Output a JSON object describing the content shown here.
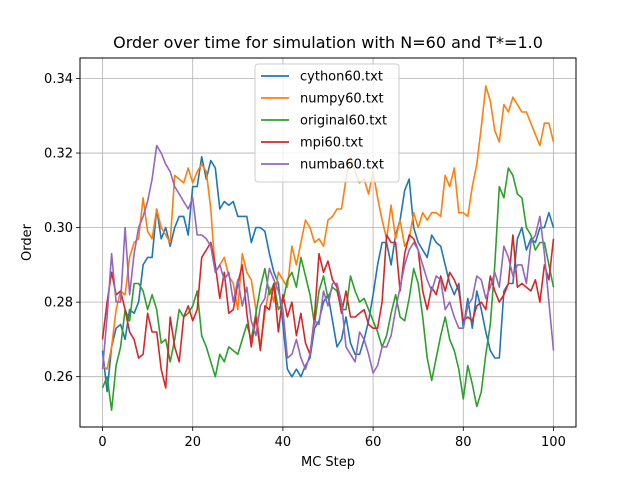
{
  "chart_data": {
    "type": "line",
    "title": "Order over time for simulation with N=60 and T*=1.0",
    "xlabel": "MC Step",
    "ylabel": "Order",
    "xlim": [
      -5,
      105
    ],
    "ylim": [
      0.2465,
      0.3455
    ],
    "xticks": [
      0,
      20,
      40,
      60,
      80,
      100
    ],
    "yticks": [
      0.26,
      0.28,
      0.3,
      0.32,
      0.34
    ],
    "ytick_labels": [
      "0.26",
      "0.28",
      "0.30",
      "0.32",
      "0.34"
    ],
    "grid": true,
    "legend_position": "upper center",
    "x": [
      0,
      1,
      2,
      3,
      4,
      5,
      6,
      7,
      8,
      9,
      10,
      11,
      12,
      13,
      14,
      15,
      16,
      17,
      18,
      19,
      20,
      21,
      22,
      23,
      24,
      25,
      26,
      27,
      28,
      29,
      30,
      31,
      32,
      33,
      34,
      35,
      36,
      37,
      38,
      39,
      40,
      41,
      42,
      43,
      44,
      45,
      46,
      47,
      48,
      49,
      50,
      51,
      52,
      53,
      54,
      55,
      56,
      57,
      58,
      59,
      60,
      61,
      62,
      63,
      64,
      65,
      66,
      67,
      68,
      69,
      70,
      71,
      72,
      73,
      74,
      75,
      76,
      77,
      78,
      79,
      80,
      81,
      82,
      83,
      84,
      85,
      86,
      87,
      88,
      89,
      90,
      91,
      92,
      93,
      94,
      95,
      96,
      97,
      98,
      99,
      100
    ],
    "series": [
      {
        "name": "cython60.txt",
        "color": "#1f77b4",
        "values": [
          0.267,
          0.256,
          0.268,
          0.273,
          0.274,
          0.27,
          0.278,
          0.277,
          0.28,
          0.29,
          0.292,
          0.292,
          0.305,
          0.297,
          0.3,
          0.295,
          0.3,
          0.303,
          0.303,
          0.298,
          0.311,
          0.311,
          0.319,
          0.313,
          0.318,
          0.316,
          0.305,
          0.307,
          0.306,
          0.307,
          0.303,
          0.303,
          0.303,
          0.296,
          0.3,
          0.3,
          0.299,
          0.293,
          0.288,
          0.285,
          0.274,
          0.262,
          0.26,
          0.262,
          0.26,
          0.263,
          0.265,
          0.273,
          0.275,
          0.28,
          0.282,
          0.275,
          0.268,
          0.27,
          0.276,
          0.269,
          0.266,
          0.266,
          0.27,
          0.275,
          0.282,
          0.29,
          0.296,
          0.296,
          0.29,
          0.298,
          0.302,
          0.31,
          0.313,
          0.3,
          0.296,
          0.294,
          0.292,
          0.298,
          0.296,
          0.295,
          0.29,
          0.285,
          0.282,
          0.285,
          0.273,
          0.281,
          0.273,
          0.283,
          0.278,
          0.272,
          0.267,
          0.265,
          0.265,
          0.283,
          0.285,
          0.285,
          0.297,
          0.3,
          0.294,
          0.297,
          0.296,
          0.3,
          0.3,
          0.304,
          0.3
        ]
      },
      {
        "name": "numpy60.txt",
        "color": "#ff7f0e",
        "values": [
          0.263,
          0.262,
          0.268,
          0.278,
          0.283,
          0.282,
          0.292,
          0.296,
          0.297,
          0.308,
          0.299,
          0.297,
          0.305,
          0.3,
          0.298,
          0.296,
          0.314,
          0.313,
          0.312,
          0.316,
          0.312,
          0.315,
          0.317,
          0.315,
          0.305,
          0.288,
          0.29,
          0.292,
          0.287,
          0.285,
          0.278,
          0.293,
          0.288,
          0.286,
          0.278,
          0.268,
          0.277,
          0.284,
          0.28,
          0.288,
          0.286,
          0.284,
          0.295,
          0.29,
          0.296,
          0.302,
          0.3,
          0.296,
          0.297,
          0.295,
          0.302,
          0.303,
          0.305,
          0.305,
          0.313,
          0.319,
          0.315,
          0.312,
          0.313,
          0.309,
          0.315,
          0.308,
          0.302,
          0.297,
          0.306,
          0.297,
          0.302,
          0.295,
          0.297,
          0.304,
          0.3,
          0.304,
          0.302,
          0.304,
          0.304,
          0.303,
          0.314,
          0.311,
          0.316,
          0.304,
          0.304,
          0.303,
          0.311,
          0.317,
          0.327,
          0.338,
          0.334,
          0.326,
          0.323,
          0.333,
          0.331,
          0.335,
          0.333,
          0.331,
          0.331,
          0.328,
          0.325,
          0.322,
          0.328,
          0.328,
          0.323
        ]
      },
      {
        "name": "original60.txt",
        "color": "#2ca02c",
        "values": [
          0.257,
          0.26,
          0.251,
          0.263,
          0.268,
          0.278,
          0.275,
          0.285,
          0.285,
          0.283,
          0.278,
          0.282,
          0.278,
          0.269,
          0.27,
          0.264,
          0.27,
          0.278,
          0.276,
          0.277,
          0.279,
          0.283,
          0.271,
          0.268,
          0.264,
          0.26,
          0.266,
          0.264,
          0.268,
          0.267,
          0.266,
          0.27,
          0.274,
          0.27,
          0.277,
          0.284,
          0.289,
          0.282,
          0.285,
          0.278,
          0.28,
          0.286,
          0.288,
          0.284,
          0.292,
          0.287,
          0.282,
          0.274,
          0.283,
          0.287,
          0.281,
          0.284,
          0.283,
          0.278,
          0.278,
          0.287,
          0.283,
          0.28,
          0.281,
          0.278,
          0.275,
          0.272,
          0.268,
          0.271,
          0.277,
          0.282,
          0.276,
          0.275,
          0.281,
          0.289,
          0.285,
          0.276,
          0.265,
          0.259,
          0.265,
          0.271,
          0.276,
          0.27,
          0.267,
          0.262,
          0.254,
          0.263,
          0.258,
          0.252,
          0.256,
          0.266,
          0.274,
          0.29,
          0.311,
          0.308,
          0.316,
          0.314,
          0.309,
          0.308,
          0.3,
          0.298,
          0.294,
          0.296,
          0.296,
          0.29,
          0.284
        ]
      },
      {
        "name": "mpi60.txt",
        "color": "#d62728",
        "values": [
          0.27,
          0.28,
          0.288,
          0.282,
          0.283,
          0.278,
          0.272,
          0.27,
          0.265,
          0.266,
          0.277,
          0.272,
          0.272,
          0.262,
          0.257,
          0.276,
          0.268,
          0.264,
          0.276,
          0.279,
          0.275,
          0.278,
          0.292,
          0.294,
          0.296,
          0.29,
          0.281,
          0.288,
          0.277,
          0.278,
          0.285,
          0.29,
          0.277,
          0.268,
          0.276,
          0.267,
          0.279,
          0.278,
          0.285,
          0.272,
          0.282,
          0.276,
          0.28,
          0.271,
          0.277,
          0.269,
          0.266,
          0.276,
          0.293,
          0.288,
          0.291,
          0.286,
          0.284,
          0.277,
          0.283,
          0.276,
          0.276,
          0.277,
          0.278,
          0.274,
          0.273,
          0.273,
          0.28,
          0.298,
          0.296,
          0.296,
          0.283,
          0.293,
          0.298,
          0.297,
          0.294,
          0.283,
          0.278,
          0.284,
          0.282,
          0.287,
          0.283,
          0.288,
          0.286,
          0.283,
          0.275,
          0.276,
          0.275,
          0.279,
          0.28,
          0.278,
          0.287,
          0.283,
          0.28,
          0.282,
          0.285,
          0.298,
          0.284,
          0.285,
          0.284,
          0.283,
          0.286,
          0.28,
          0.29,
          0.286,
          0.297
        ]
      },
      {
        "name": "numba60.txt",
        "color": "#9467bd",
        "values": [
          0.262,
          0.276,
          0.293,
          0.28,
          0.28,
          0.3,
          0.282,
          0.293,
          0.3,
          0.303,
          0.307,
          0.313,
          0.322,
          0.32,
          0.317,
          0.315,
          0.311,
          0.309,
          0.307,
          0.305,
          0.308,
          0.298,
          0.298,
          0.297,
          0.295,
          0.288,
          0.29,
          0.286,
          0.288,
          0.28,
          0.286,
          0.279,
          0.284,
          0.275,
          0.271,
          0.279,
          0.281,
          0.289,
          0.286,
          0.283,
          0.278,
          0.265,
          0.266,
          0.27,
          0.265,
          0.262,
          0.266,
          0.275,
          0.274,
          0.283,
          0.279,
          0.285,
          0.285,
          0.28,
          0.268,
          0.266,
          0.264,
          0.272,
          0.27,
          0.266,
          0.261,
          0.263,
          0.268,
          0.268,
          0.271,
          0.278,
          0.284,
          0.29,
          0.294,
          0.296,
          0.294,
          0.29,
          0.286,
          0.283,
          0.287,
          0.286,
          0.278,
          0.28,
          0.276,
          0.273,
          0.273,
          0.279,
          0.281,
          0.287,
          0.286,
          0.281,
          0.284,
          0.288,
          0.284,
          0.295,
          0.292,
          0.287,
          0.29,
          0.29,
          0.285,
          0.296,
          0.298,
          0.303,
          0.293,
          0.28,
          0.267
        ]
      }
    ]
  }
}
